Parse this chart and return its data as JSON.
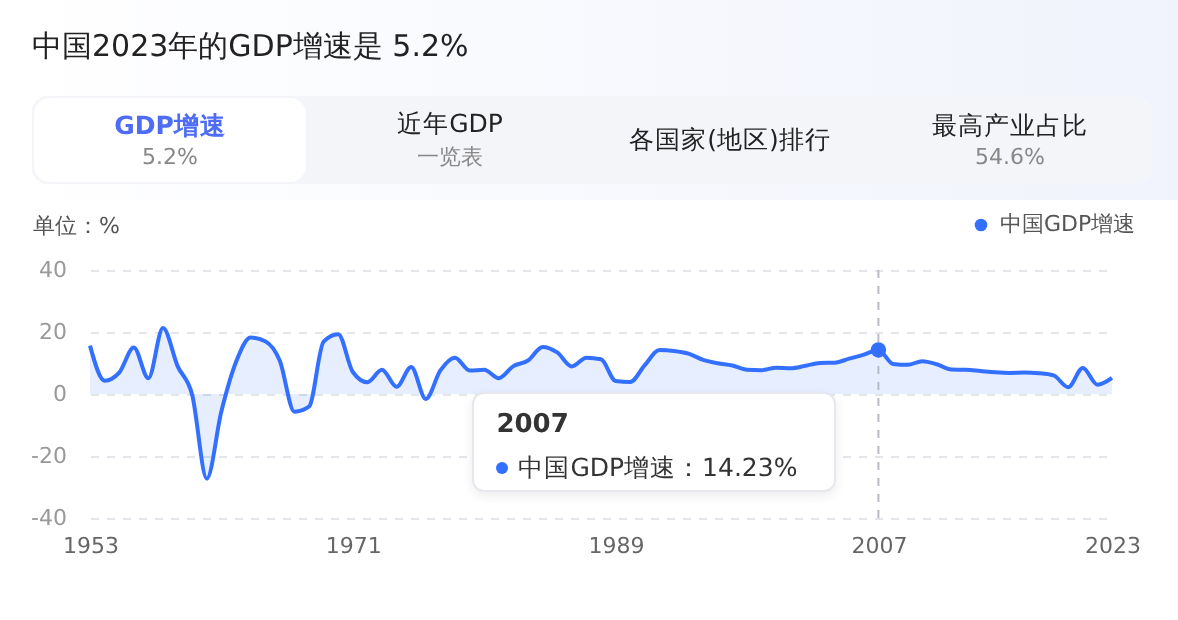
{
  "chart_data": {
    "type": "area",
    "title": "中国2023年的GDP增速是 5.2%",
    "ylabel": "单位：%",
    "x": [
      1953,
      1954,
      1955,
      1956,
      1957,
      1958,
      1959,
      1960,
      1961,
      1962,
      1963,
      1964,
      1965,
      1966,
      1967,
      1968,
      1969,
      1970,
      1971,
      1972,
      1973,
      1974,
      1975,
      1976,
      1977,
      1978,
      1979,
      1980,
      1981,
      1982,
      1983,
      1984,
      1985,
      1986,
      1987,
      1988,
      1989,
      1990,
      1991,
      1992,
      1993,
      1994,
      1995,
      1996,
      1997,
      1998,
      1999,
      2000,
      2001,
      2002,
      2003,
      2004,
      2005,
      2006,
      2007,
      2008,
      2009,
      2010,
      2011,
      2012,
      2013,
      2014,
      2015,
      2016,
      2017,
      2018,
      2019,
      2020,
      2021,
      2022,
      2023
    ],
    "series": [
      {
        "name": "中国GDP增速",
        "color": "#3370ff",
        "values": [
          15.6,
          4.3,
          6.9,
          15.0,
          5.1,
          21.3,
          9.0,
          -0.3,
          -27.3,
          -5.6,
          10.3,
          18.2,
          17.0,
          10.7,
          -5.7,
          -4.1,
          16.9,
          19.3,
          7.1,
          3.8,
          7.8,
          2.3,
          8.7,
          -1.6,
          7.6,
          11.7,
          7.6,
          7.8,
          5.1,
          9.0,
          10.8,
          15.2,
          13.4,
          8.9,
          11.7,
          11.2,
          4.2,
          3.9,
          9.3,
          14.2,
          13.9,
          13.0,
          11.0,
          9.9,
          9.2,
          7.8,
          7.7,
          8.5,
          8.3,
          9.1,
          10.0,
          10.1,
          11.4,
          12.7,
          14.23,
          9.7,
          9.4,
          10.6,
          9.6,
          7.9,
          7.8,
          7.4,
          7.0,
          6.8,
          6.9,
          6.7,
          6.0,
          2.2,
          8.4,
          3.0,
          5.2
        ]
      }
    ],
    "xlim": [
      1953,
      2023
    ],
    "xticks": [
      1953,
      1971,
      1989,
      2007,
      2023
    ],
    "ylim": [
      -40,
      40
    ],
    "yticks": [
      -40,
      -20,
      0,
      20,
      40
    ],
    "grid": "y",
    "legend": "top right",
    "marker": "none",
    "line_style": "solid",
    "ref_lines": [
      {
        "axis": "x",
        "value": 2007,
        "line_style": "dashed"
      }
    ],
    "annotations": [
      "GDP增速",
      "5.2%",
      "近年GDP",
      "一览表",
      "各国家(地区)排行",
      "最高产业占比",
      "54.6%",
      "2007",
      "中国GDP增速：14.23%"
    ]
  }
}
